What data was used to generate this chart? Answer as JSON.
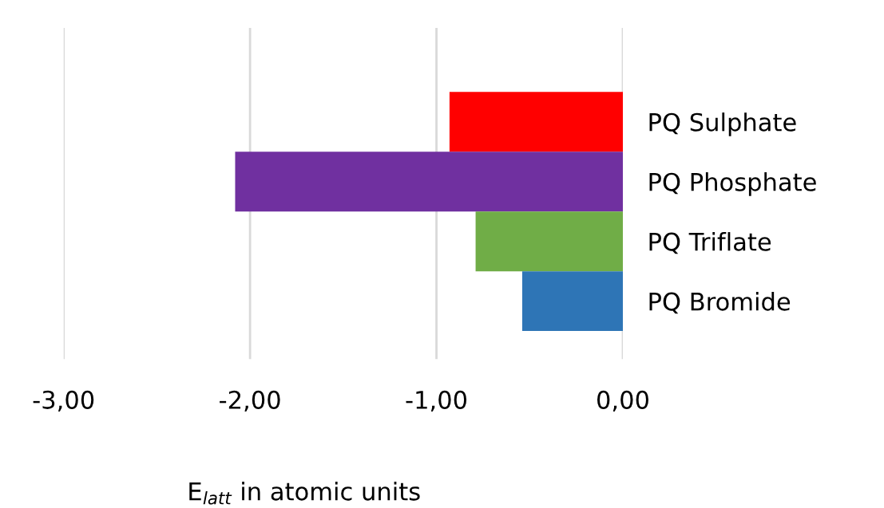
{
  "chart_data": {
    "type": "bar",
    "orientation": "horizontal",
    "categories": [
      "PQ Sulphate",
      "PQ Phosphate",
      "PQ Triflate",
      "PQ Bromide"
    ],
    "values": [
      -0.93,
      -2.08,
      -0.79,
      -0.54
    ],
    "colors": [
      "#ff0000",
      "#7030a0",
      "#70ad47",
      "#2e75b6"
    ],
    "xlabel": "E$_{latt}$ in atomic units",
    "xlim": [
      -3,
      0
    ],
    "xticks": [
      {
        "value": -3,
        "label": "-3,00"
      },
      {
        "value": -2,
        "label": "-2,00"
      },
      {
        "value": -1,
        "label": "-1,00"
      },
      {
        "value": 0,
        "label": "0,00"
      }
    ],
    "grid": "x"
  }
}
